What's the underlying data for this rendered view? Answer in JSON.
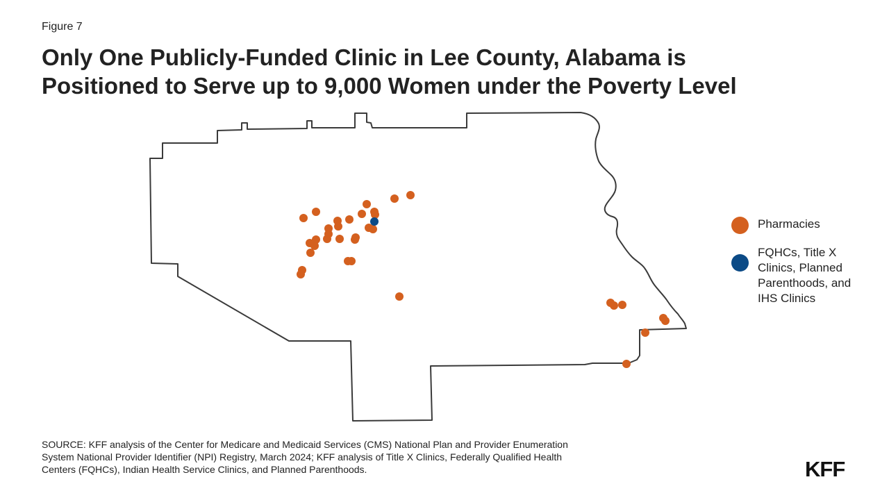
{
  "figure_label": "Figure 7",
  "title": {
    "line1": "Only One Publicly-Funded Clinic in Lee County, Alabama is",
    "line2": "Positioned to Serve up to 9,000 Women under the Poverty Level"
  },
  "colors": {
    "pharmacies": "#d4601f",
    "clinics": "#0b4a86",
    "outline": "#3a3a3a"
  },
  "legend": {
    "pharmacies": "Pharmacies",
    "clinics_lines": [
      "FQHCs, Title X",
      "Clinics, Planned",
      "Parenthoods, and",
      "IHS Clinics"
    ]
  },
  "source_lines": [
    "SOURCE: KFF analysis of the Center for Medicare and Medicaid Services (CMS) National Plan and Provider Enumeration",
    "System National Provider Identifier (NPI) Registry, March 2024; KFF analysis of Title X Clinics, Federally Qualified Health",
    "Centers (FQHCs), Indian Health Service Clinics, and Planned Parenthoods."
  ],
  "logo": "KFF"
}
